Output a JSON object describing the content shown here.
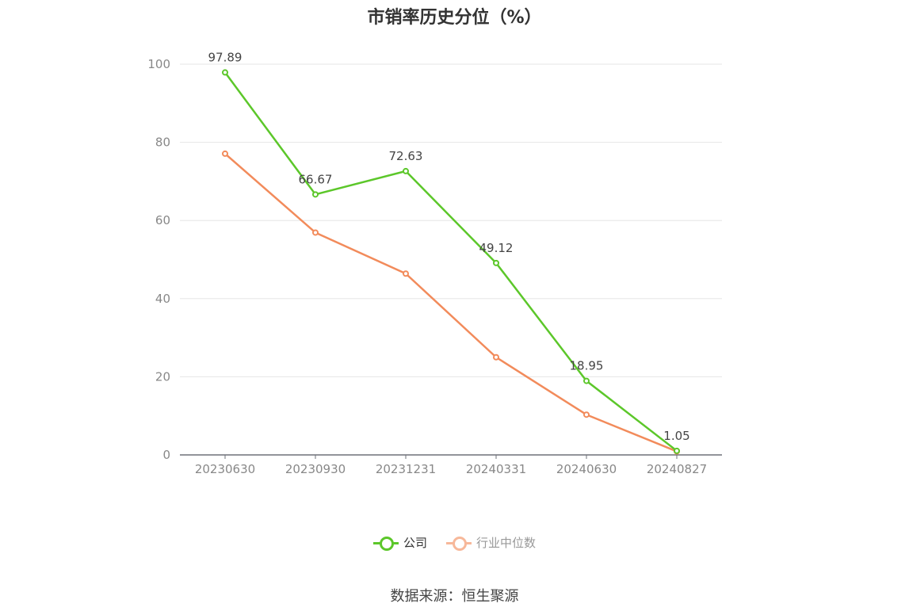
{
  "chart_data": {
    "type": "line",
    "title": "市销率历史分位（%）",
    "categories": [
      "20230630",
      "20230930",
      "20231231",
      "20240331",
      "20240630",
      "20240827"
    ],
    "series": [
      {
        "name": "公司",
        "values": [
          97.89,
          66.67,
          72.63,
          49.12,
          18.95,
          1.05
        ],
        "color": "#5cc72a",
        "show_labels": true
      },
      {
        "name": "行业中位数",
        "values": [
          77.1,
          56.9,
          46.4,
          25.0,
          10.3,
          0.9
        ],
        "color": "#f28b5b",
        "show_labels": false
      }
    ],
    "ylim": [
      0,
      100
    ],
    "yticks": [
      0,
      20,
      40,
      60,
      80,
      100
    ],
    "grid": true,
    "legend": "bottom-center"
  },
  "legend": {
    "company": "公司",
    "industry": "行业中位数",
    "industry_text_color": "#999999",
    "company_text_color": "#333333"
  },
  "source": "数据来源：恒生聚源"
}
